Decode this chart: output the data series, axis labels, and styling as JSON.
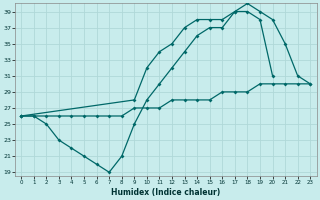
{
  "title": "",
  "xlabel": "Humidex (Indice chaleur)",
  "background_color": "#c8ecec",
  "grid_color": "#b0d8d8",
  "line_color": "#006868",
  "xlim": [
    -0.5,
    23.5
  ],
  "ylim": [
    18.5,
    40.0
  ],
  "xticks": [
    0,
    1,
    2,
    3,
    4,
    5,
    6,
    7,
    8,
    9,
    10,
    11,
    12,
    13,
    14,
    15,
    16,
    17,
    18,
    19,
    20,
    21,
    22,
    23
  ],
  "yticks": [
    19,
    21,
    23,
    25,
    27,
    29,
    31,
    33,
    35,
    37,
    39
  ],
  "line1_x": [
    0,
    1,
    2,
    3,
    4,
    5,
    6,
    7,
    8,
    9,
    10,
    11,
    12,
    13,
    14,
    15,
    16,
    17,
    18,
    19,
    20
  ],
  "line1_y": [
    26,
    26,
    25,
    23,
    22,
    21,
    20,
    19,
    21,
    25,
    28,
    30,
    32,
    34,
    36,
    37,
    37,
    39,
    39,
    38,
    31
  ],
  "line2_x": [
    0,
    1,
    2,
    3,
    4,
    5,
    6,
    7,
    8,
    9,
    10,
    11,
    12,
    13,
    14,
    15,
    16,
    17,
    18,
    19,
    20,
    21,
    22,
    23
  ],
  "line2_y": [
    26,
    26,
    26,
    26,
    26,
    26,
    26,
    26,
    26,
    27,
    27,
    27,
    28,
    28,
    28,
    28,
    29,
    29,
    29,
    30,
    30,
    30,
    30,
    30
  ],
  "line3_x": [
    0,
    9,
    10,
    11,
    12,
    13,
    14,
    15,
    16,
    17,
    18,
    19,
    20,
    21,
    22,
    23
  ],
  "line3_y": [
    26,
    28,
    32,
    34,
    35,
    37,
    38,
    38,
    38,
    39,
    40,
    39,
    38,
    35,
    31,
    30
  ]
}
